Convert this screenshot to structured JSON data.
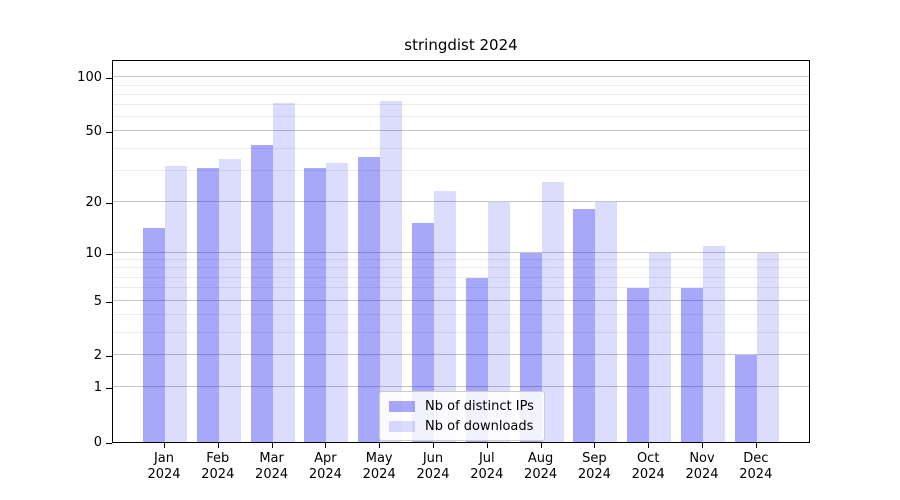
{
  "title": "stringdist 2024",
  "chart_data": {
    "type": "bar",
    "title": "stringdist 2024",
    "xlabel": "",
    "ylabel": "",
    "months": [
      "Jan",
      "Feb",
      "Mar",
      "Apr",
      "May",
      "Jun",
      "Jul",
      "Aug",
      "Sep",
      "Oct",
      "Nov",
      "Dec"
    ],
    "year_label": "2024",
    "series": [
      {
        "name": "Nb of distinct IPs",
        "color_hex": "#0505F0",
        "alpha": 0.35,
        "fill": "rgba(5,5,240,0.35)",
        "values": [
          14,
          31,
          42,
          31,
          36,
          15,
          7,
          10,
          18,
          6,
          6,
          2
        ]
      },
      {
        "name": "Nb of downloads",
        "color_hex": "#0505F0",
        "alpha": 0.14,
        "fill": "rgba(5,5,240,0.14)",
        "values": [
          32,
          35,
          72,
          33,
          74,
          23,
          20,
          26,
          20,
          10,
          11,
          10
        ]
      }
    ],
    "y_scale": "log1p",
    "y_major_ticks": [
      0,
      1,
      2,
      5,
      10,
      20,
      50,
      100
    ],
    "y_minor_gridlines": [
      3,
      4,
      6,
      7,
      8,
      9,
      30,
      40,
      60,
      70,
      80,
      90
    ],
    "ylim": [
      0,
      127
    ],
    "grid": "horizontal",
    "legend_position": "inside-bottom-center",
    "gridline_major_color": "#c6c6c6",
    "gridline_minor_color": "#ececec",
    "spine_color": "#000000",
    "background_color": "#ffffff"
  }
}
